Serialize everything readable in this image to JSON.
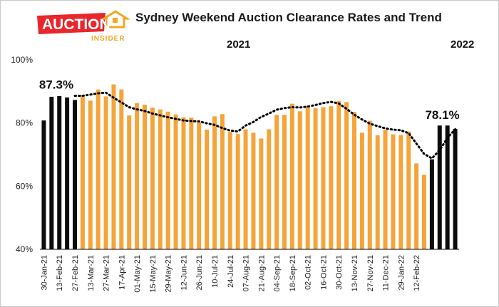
{
  "logo": {
    "word": "AUCTION",
    "sub": "INSIDER",
    "colors": {
      "red": "#e8262b",
      "orange": "#f5a623"
    }
  },
  "header": {
    "title": "Sydney Weekend Auction Clearance Rates and Trend",
    "year_2021": "2021",
    "year_2022": "2022"
  },
  "chart_data": {
    "type": "bar",
    "title": "Sydney Weekend Auction Clearance Rates and Trend",
    "xlabel": "",
    "ylabel": "",
    "ylim": [
      40,
      100
    ],
    "yticks": [
      "40%",
      "60%",
      "80%",
      "100%"
    ],
    "grid": false,
    "x_tick_labels": [
      "30-Jan-21",
      "13-Feb-21",
      "27-Feb-21",
      "13-Mar-21",
      "27-Mar-21",
      "17-Apr-21",
      "01-May-21",
      "15-May-21",
      "29-May-21",
      "12-Jun-21",
      "26-Jun-21",
      "10-Jul-21",
      "24-Jul-21",
      "07-Aug-21",
      "21-Aug-21",
      "04-Sep-21",
      "18-Sep-21",
      "02-Oct-21",
      "16-Oct-21",
      "30-Oct-21",
      "13-Nov-21",
      "27-Nov-21",
      "11-Dec-21",
      "29-Jan-22",
      "12-Feb-22"
    ],
    "series": [
      {
        "type": "bar",
        "values": [
          80.8,
          88.3,
          88.5,
          88.1,
          87.3,
          88.9,
          87.1,
          90.6,
          88.4,
          92.2,
          90.6,
          82.4,
          86.3,
          85.8,
          84.9,
          84.3,
          83.6,
          82.7,
          81.8,
          81.7,
          80.2,
          77.9,
          82.1,
          82.8,
          77.2,
          76.5,
          78.0,
          76.9,
          75.1,
          78.0,
          82.6,
          82.6,
          86.1,
          83.7,
          85.4,
          84.7,
          85.0,
          85.3,
          87.0,
          86.6,
          83.5,
          76.9,
          80.7,
          76.1,
          77.9,
          76.4,
          76.2,
          77.3,
          67.2,
          63.6,
          68.5,
          79.2,
          79.2,
          78.1
        ],
        "colors_by_point": [
          "black",
          "black",
          "black",
          "black",
          "black",
          "orange",
          "orange",
          "orange",
          "orange",
          "orange",
          "orange",
          "orange",
          "orange",
          "orange",
          "orange",
          "orange",
          "orange",
          "orange",
          "orange",
          "orange",
          "orange",
          "orange",
          "orange",
          "orange",
          "orange",
          "orange",
          "orange",
          "orange",
          "orange",
          "orange",
          "orange",
          "orange",
          "orange",
          "orange",
          "orange",
          "orange",
          "orange",
          "orange",
          "orange",
          "orange",
          "orange",
          "orange",
          "orange",
          "orange",
          "orange",
          "orange",
          "orange",
          "orange",
          "orange",
          "orange",
          "black",
          "black",
          "black",
          "black"
        ]
      },
      {
        "type": "line",
        "style": "dotted",
        "start_index": 4,
        "values": [
          88.6,
          88.6,
          89.0,
          89.4,
          89.6,
          88.0,
          86.5,
          85.0,
          84.3,
          83.8,
          83.0,
          82.4,
          81.8,
          81.3,
          80.8,
          80.6,
          80.5,
          79.9,
          79.4,
          78.4,
          77.6,
          77.3,
          79.2,
          80.3,
          81.9,
          83.0,
          84.2,
          84.7,
          85.0,
          84.9,
          85.2,
          85.7,
          86.3,
          86.7,
          86.2,
          84.5,
          82.6,
          81.1,
          79.8,
          79.0,
          78.3,
          77.9,
          77.7,
          76.8,
          73.5,
          70.2,
          68.8,
          71.4,
          75.3,
          78.0
        ]
      }
    ],
    "colors": {
      "orange": "#f5a43a",
      "black": "#0d0d0d",
      "trend": "#000000"
    },
    "annotations": [
      {
        "text": "87.3%",
        "index": 4
      },
      {
        "text": "78.1%",
        "index": 53
      }
    ]
  }
}
